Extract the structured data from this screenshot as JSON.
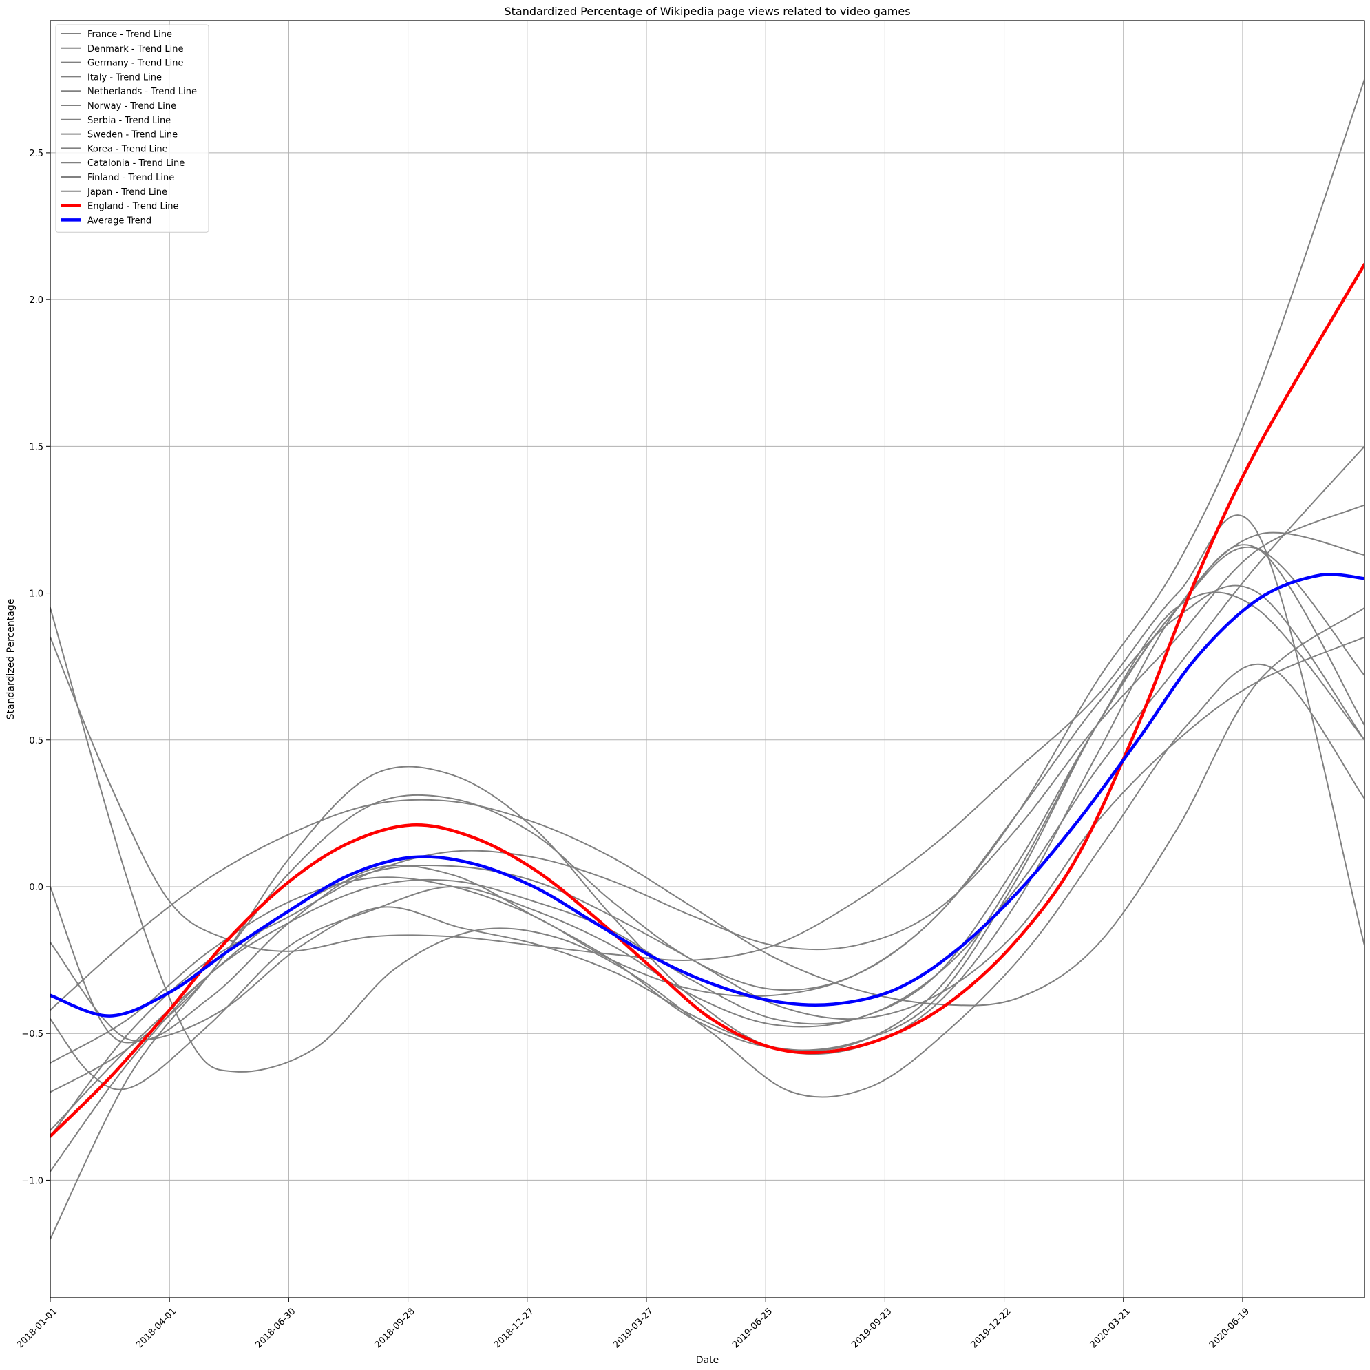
{
  "chart_data": {
    "type": "line",
    "title": "Standardized Percentage of Wikipedia page views related to video games",
    "xlabel": "Date",
    "ylabel": "Standardized Percentage",
    "x_axis_type": "date",
    "xlim": [
      "2018-01-01",
      "2020-09-19"
    ],
    "ylim": [
      -1.4,
      2.95
    ],
    "x_ticks": [
      "2018-01-01",
      "2018-04-01",
      "2018-06-30",
      "2018-09-28",
      "2018-12-27",
      "2019-03-27",
      "2019-06-25",
      "2019-09-23",
      "2019-12-22",
      "2020-03-21",
      "2020-06-19"
    ],
    "y_ticks": [
      -1.0,
      -0.5,
      0.0,
      0.5,
      1.0,
      1.5,
      2.0,
      2.5
    ],
    "grid": true,
    "legend_position": "top-left",
    "x_tick_rotation": 45,
    "series": [
      {
        "name": "France - Trend Line",
        "color": "#808080",
        "width": 2,
        "x": [
          "2018-01-01",
          "2018-03-02",
          "2018-04-16",
          "2018-05-21",
          "2018-07-20",
          "2018-09-18",
          "2018-11-17",
          "2019-01-16",
          "2019-03-17",
          "2019-05-16",
          "2019-07-15",
          "2019-09-13",
          "2019-11-12",
          "2020-01-11",
          "2020-03-11",
          "2020-05-10",
          "2020-07-09",
          "2020-09-19"
        ],
        "y": [
          0.95,
          0.0,
          -0.52,
          -0.63,
          -0.55,
          -0.28,
          -0.15,
          -0.17,
          -0.3,
          -0.5,
          -0.7,
          -0.68,
          -0.48,
          -0.2,
          0.18,
          0.56,
          0.75,
          0.3
        ]
      },
      {
        "name": "Denmark - Trend Line",
        "color": "#808080",
        "width": 2,
        "x": [
          "2018-01-01",
          "2018-02-10",
          "2018-03-17",
          "2018-05-11",
          "2018-07-10",
          "2018-09-08",
          "2018-11-07",
          "2019-01-06",
          "2019-03-07",
          "2019-05-06",
          "2019-07-05",
          "2019-09-03",
          "2019-11-02",
          "2020-01-01",
          "2020-03-01",
          "2020-04-30",
          "2020-06-29",
          "2020-09-19"
        ],
        "y": [
          0.0,
          -0.47,
          -0.52,
          -0.42,
          -0.2,
          -0.07,
          -0.14,
          -0.2,
          -0.3,
          -0.45,
          -0.55,
          -0.53,
          -0.35,
          0.05,
          0.55,
          0.95,
          0.95,
          0.5
        ]
      },
      {
        "name": "Germany - Trend Line",
        "color": "#808080",
        "width": 2,
        "x": [
          "2018-01-01",
          "2018-02-01",
          "2018-03-05",
          "2018-05-01",
          "2018-07-01",
          "2018-09-01",
          "2018-11-01",
          "2019-01-01",
          "2019-03-01",
          "2019-05-01",
          "2019-07-01",
          "2019-09-01",
          "2019-11-01",
          "2020-01-01",
          "2020-03-01",
          "2020-05-01",
          "2020-07-01",
          "2020-09-19"
        ],
        "y": [
          -0.45,
          -0.64,
          -0.68,
          -0.47,
          -0.2,
          -0.08,
          0.0,
          -0.08,
          -0.2,
          -0.37,
          -0.47,
          -0.45,
          -0.3,
          0.08,
          0.55,
          0.95,
          1.15,
          0.55
        ]
      },
      {
        "name": "Italy - Trend Line",
        "color": "#808080",
        "width": 2,
        "x": [
          "2018-01-01",
          "2018-03-01",
          "2018-05-01",
          "2018-07-01",
          "2018-09-01",
          "2018-11-01",
          "2019-01-01",
          "2019-03-01",
          "2019-05-01",
          "2019-07-01",
          "2019-09-01",
          "2019-11-01",
          "2020-01-01",
          "2020-03-01",
          "2020-05-01",
          "2020-07-01",
          "2020-09-19"
        ],
        "y": [
          -0.19,
          -0.52,
          -0.38,
          -0.12,
          0.06,
          0.04,
          -0.1,
          -0.25,
          -0.45,
          -0.55,
          -0.53,
          -0.38,
          0.03,
          0.55,
          0.95,
          1.15,
          0.72
        ]
      },
      {
        "name": "Netherlands - Trend Line",
        "color": "#808080",
        "width": 2,
        "x": [
          "2018-01-01",
          "2018-03-01",
          "2018-05-01",
          "2018-07-01",
          "2018-09-01",
          "2018-11-01",
          "2019-01-01",
          "2019-03-01",
          "2019-05-01",
          "2019-07-01",
          "2019-09-01",
          "2019-11-01",
          "2020-01-01",
          "2020-03-01",
          "2020-05-01",
          "2020-07-01",
          "2020-09-19"
        ],
        "y": [
          -0.42,
          -0.18,
          0.03,
          0.18,
          0.28,
          0.29,
          0.22,
          0.1,
          -0.07,
          -0.24,
          -0.35,
          -0.4,
          -0.38,
          -0.2,
          0.2,
          0.7,
          0.95
        ]
      },
      {
        "name": "Norway - Trend Line",
        "color": "#808080",
        "width": 2,
        "x": [
          "2018-01-01",
          "2018-03-01",
          "2018-05-01",
          "2018-07-01",
          "2018-09-01",
          "2018-11-01",
          "2019-01-01",
          "2019-03-01",
          "2019-05-01",
          "2019-07-01",
          "2019-09-01",
          "2019-11-01",
          "2020-01-01",
          "2020-03-01",
          "2020-05-01",
          "2020-07-01",
          "2020-09-19"
        ],
        "y": [
          -0.7,
          -0.55,
          -0.3,
          0.1,
          0.38,
          0.38,
          0.2,
          -0.1,
          -0.38,
          -0.55,
          -0.55,
          -0.4,
          -0.05,
          0.45,
          0.95,
          1.2,
          1.13
        ]
      },
      {
        "name": "Serbia - Trend Line",
        "color": "#808080",
        "width": 2,
        "x": [
          "2018-01-01",
          "2018-03-01",
          "2018-05-01",
          "2018-07-01",
          "2018-09-01",
          "2018-11-01",
          "2019-01-01",
          "2019-03-01",
          "2019-05-01",
          "2019-07-01",
          "2019-09-01",
          "2019-11-01",
          "2020-01-01",
          "2020-03-01",
          "2020-05-01",
          "2020-07-01",
          "2020-09-19"
        ],
        "y": [
          -0.6,
          -0.45,
          -0.22,
          -0.05,
          0.03,
          0.0,
          -0.1,
          -0.25,
          -0.35,
          -0.37,
          -0.3,
          -0.1,
          0.25,
          0.62,
          0.92,
          1.0,
          0.5
        ]
      },
      {
        "name": "Sweden - Trend Line",
        "color": "#808080",
        "width": 2,
        "x": [
          "2018-01-01",
          "2018-03-01",
          "2018-05-01",
          "2018-07-01",
          "2018-09-01",
          "2018-11-01",
          "2019-01-01",
          "2019-03-01",
          "2019-05-01",
          "2019-07-01",
          "2019-09-01",
          "2019-11-01",
          "2020-01-01",
          "2020-03-01",
          "2020-05-01",
          "2020-07-01",
          "2020-09-19"
        ],
        "y": [
          -0.85,
          -0.5,
          -0.25,
          -0.1,
          0.05,
          0.12,
          0.1,
          0.02,
          -0.1,
          -0.2,
          -0.2,
          -0.08,
          0.2,
          0.55,
          0.85,
          1.15,
          1.3
        ]
      },
      {
        "name": "Korea - Trend Line",
        "color": "#808080",
        "width": 2,
        "x": [
          "2018-01-01",
          "2018-03-01",
          "2018-05-01",
          "2018-07-01",
          "2018-09-01",
          "2018-11-01",
          "2019-01-01",
          "2019-03-01",
          "2019-05-01",
          "2019-07-01",
          "2019-09-01",
          "2019-11-01",
          "2020-01-01",
          "2020-03-01",
          "2020-05-01",
          "2020-07-01",
          "2020-09-19"
        ],
        "y": [
          -0.97,
          -0.6,
          -0.3,
          -0.12,
          0.0,
          0.02,
          -0.05,
          -0.15,
          -0.32,
          -0.45,
          -0.45,
          -0.3,
          0.0,
          0.4,
          0.75,
          1.1,
          1.5
        ]
      },
      {
        "name": "Catalonia - Trend Line",
        "color": "#808080",
        "width": 2,
        "x": [
          "2018-01-01",
          "2018-03-01",
          "2018-05-01",
          "2018-07-01",
          "2018-09-01",
          "2018-11-01",
          "2019-01-01",
          "2019-03-01",
          "2019-05-01",
          "2019-07-01",
          "2019-09-01",
          "2019-11-01",
          "2020-01-01",
          "2020-03-01",
          "2020-05-01",
          "2020-07-01",
          "2020-09-19"
        ],
        "y": [
          -1.2,
          -0.65,
          -0.3,
          0.05,
          0.28,
          0.3,
          0.18,
          -0.05,
          -0.25,
          -0.35,
          -0.3,
          -0.1,
          0.25,
          0.7,
          1.1,
          1.7,
          2.75
        ]
      },
      {
        "name": "Finland - Trend Line",
        "color": "#808080",
        "width": 2,
        "x": [
          "2018-01-01",
          "2018-03-01",
          "2018-05-01",
          "2018-07-01",
          "2018-09-01",
          "2018-11-01",
          "2019-01-01",
          "2019-03-01",
          "2019-05-01",
          "2019-07-01",
          "2019-09-01",
          "2019-11-01",
          "2020-01-01",
          "2020-03-01",
          "2020-05-01",
          "2020-07-01",
          "2020-09-19"
        ],
        "y": [
          -0.83,
          -0.55,
          -0.3,
          -0.08,
          0.05,
          0.07,
          0.02,
          -0.1,
          -0.25,
          -0.4,
          -0.45,
          -0.37,
          -0.15,
          0.22,
          0.5,
          0.7,
          0.85
        ]
      },
      {
        "name": "Japan - Trend Line",
        "color": "#808080",
        "width": 2,
        "x": [
          "2018-01-01",
          "2018-02-15",
          "2018-04-01",
          "2018-05-15",
          "2018-07-01",
          "2018-09-01",
          "2018-11-01",
          "2019-01-01",
          "2019-03-01",
          "2019-05-01",
          "2019-07-01",
          "2019-09-01",
          "2019-11-01",
          "2020-01-01",
          "2020-03-01",
          "2020-05-01",
          "2020-07-01",
          "2020-09-19"
        ],
        "y": [
          0.85,
          0.35,
          -0.05,
          -0.18,
          -0.22,
          -0.17,
          -0.17,
          -0.2,
          -0.23,
          -0.25,
          -0.2,
          -0.05,
          0.15,
          0.4,
          0.65,
          1.0,
          1.2,
          -0.2
        ]
      },
      {
        "name": "England - Trend Line",
        "color": "#ff0000",
        "width": 4.5,
        "x": [
          "2018-01-01",
          "2018-02-15",
          "2018-04-01",
          "2018-05-15",
          "2018-07-01",
          "2018-08-15",
          "2018-10-01",
          "2018-11-15",
          "2019-01-01",
          "2019-02-15",
          "2019-04-01",
          "2019-05-15",
          "2019-07-01",
          "2019-08-15",
          "2019-10-01",
          "2019-11-15",
          "2020-01-01",
          "2020-02-15",
          "2020-04-01",
          "2020-05-15",
          "2020-07-01",
          "2020-09-19"
        ],
        "y": [
          -0.85,
          -0.65,
          -0.42,
          -0.18,
          0.02,
          0.15,
          0.21,
          0.17,
          0.06,
          -0.1,
          -0.28,
          -0.45,
          -0.55,
          -0.56,
          -0.5,
          -0.38,
          -0.18,
          0.1,
          0.55,
          1.05,
          1.5,
          2.12
        ]
      },
      {
        "name": "Average Trend",
        "color": "#0000ff",
        "width": 4.5,
        "x": [
          "2018-01-01",
          "2018-02-15",
          "2018-04-01",
          "2018-05-15",
          "2018-07-01",
          "2018-08-15",
          "2018-10-01",
          "2018-11-15",
          "2019-01-01",
          "2019-02-15",
          "2019-04-01",
          "2019-05-15",
          "2019-07-01",
          "2019-08-15",
          "2019-10-01",
          "2019-11-15",
          "2020-01-01",
          "2020-02-15",
          "2020-04-01",
          "2020-05-15",
          "2020-07-01",
          "2020-08-15",
          "2020-09-19"
        ],
        "y": [
          -0.37,
          -0.44,
          -0.36,
          -0.22,
          -0.08,
          0.04,
          0.1,
          0.08,
          0.0,
          -0.12,
          -0.24,
          -0.33,
          -0.39,
          -0.4,
          -0.35,
          -0.22,
          -0.02,
          0.22,
          0.5,
          0.78,
          0.98,
          1.06,
          1.05
        ]
      }
    ]
  }
}
